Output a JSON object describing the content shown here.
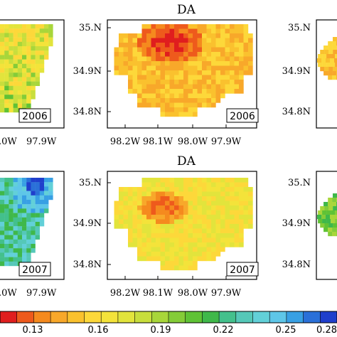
{
  "chart_data": {
    "type": "heatmap",
    "colorbar": {
      "colors": [
        "#e01e1e",
        "#ee5a1c",
        "#f58a1e",
        "#f8a82a",
        "#fac12e",
        "#fdd83a",
        "#f4e33a",
        "#e2e43c",
        "#c8de3c",
        "#a8d63a",
        "#84cc38",
        "#5fc235",
        "#3fb84a",
        "#43c08c",
        "#55c8b8",
        "#62d0d8",
        "#5ec6e8",
        "#38a0e4",
        "#2a70d8",
        "#1f3fcc"
      ],
      "tick_labels": [
        "0.13",
        "0.16",
        "0.19",
        "0.22",
        "0.25",
        "0.28"
      ]
    },
    "panels": [
      {
        "id": "left-2006",
        "year": "2006",
        "x_tick_labels": [
          ".0W",
          "97.9W"
        ],
        "y_tick_labels": [],
        "palette": [
          "#fdd83a",
          "#f4e33a",
          "#e2e43c",
          "#c8de3c",
          "#a8d63a",
          "#84cc38",
          "#5fc235"
        ]
      },
      {
        "id": "center-2006",
        "title": "DA",
        "year": "2006",
        "x_tick_labels": [
          "98.2W",
          "98.1W",
          "98.0W",
          "97.9W"
        ],
        "y_tick_labels": [
          "35.N",
          "34.9N",
          "34.8N"
        ],
        "palette": [
          "#e01e1e",
          "#ee5a1c",
          "#f58a1e",
          "#f8a82a",
          "#fac12e",
          "#fdd83a",
          "#f4e33a"
        ]
      },
      {
        "id": "right-2006",
        "y_tick_labels": [
          "35.N",
          "34.9N",
          "34.8N"
        ],
        "palette": [
          "#f8a82a",
          "#fac12e",
          "#fdd83a"
        ]
      },
      {
        "id": "left-2007",
        "year": "2007",
        "x_tick_labels": [
          ".0W",
          "97.9W"
        ],
        "y_tick_labels": [],
        "palette": [
          "#1f3fcc",
          "#2a70d8",
          "#38a0e4",
          "#5ec6e8",
          "#62d0d8",
          "#55c8b8",
          "#43c08c",
          "#3fb84a",
          "#5fc235"
        ]
      },
      {
        "id": "center-2007",
        "title": "DA",
        "year": "2007",
        "x_tick_labels": [
          "98.2W",
          "98.1W",
          "98.0W",
          "97.9W"
        ],
        "y_tick_labels": [
          "35.N",
          "34.9N",
          "34.8N"
        ],
        "palette": [
          "#ee5a1c",
          "#f58a1e",
          "#f8a82a",
          "#fac12e",
          "#fdd83a",
          "#f4e33a",
          "#e2e43c",
          "#c8de3c"
        ]
      },
      {
        "id": "right-2007",
        "y_tick_labels": [
          "35.N",
          "34.9N",
          "34.8N"
        ],
        "palette": [
          "#84cc38",
          "#5fc235",
          "#3fb84a",
          "#a8d63a"
        ]
      }
    ]
  }
}
